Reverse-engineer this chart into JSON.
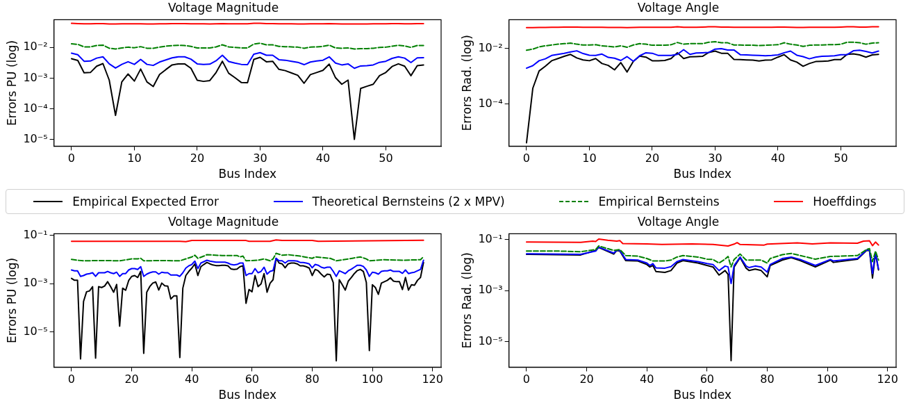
{
  "chart_data": [
    {
      "type": "line",
      "title": "Voltage Magnitude",
      "xlabel": "Bus Index",
      "ylabel": "Errors PU (log)",
      "log": "y",
      "legend": "bottom",
      "xlim": [
        -2.8,
        58.8
      ],
      "xticks": [
        0,
        10,
        20,
        30,
        40,
        50
      ],
      "ylim": [
        6e-06,
        0.08
      ],
      "yticks": [
        {
          "value": 0.01,
          "label": "10⁻²"
        },
        {
          "value": 0.001,
          "label": "10⁻³"
        },
        {
          "value": 0.0001,
          "label": "10⁻⁴"
        },
        {
          "value": 1e-05,
          "label": "10⁻⁵"
        }
      ],
      "x": [
        0,
        1,
        2,
        3,
        4,
        5,
        6,
        7,
        8,
        9,
        10,
        11,
        12,
        13,
        14,
        15,
        16,
        17,
        18,
        19,
        20,
        21,
        22,
        23,
        24,
        25,
        26,
        27,
        28,
        29,
        30,
        31,
        32,
        33,
        34,
        35,
        36,
        37,
        38,
        39,
        40,
        41,
        42,
        43,
        44,
        45,
        46,
        47,
        48,
        49,
        50,
        51,
        52,
        53,
        54,
        55,
        56
      ],
      "series": [
        {
          "name": "Empirical Expected Error",
          "color": "#000000",
          "values": [
            0.0043,
            0.00375,
            0.00149,
            0.00152,
            0.00244,
            0.00297,
            0.00086,
            6.1e-05,
            0.00075,
            0.00136,
            0.0008,
            0.00197,
            0.00075,
            0.00053,
            0.0013,
            0.00189,
            0.00269,
            0.00291,
            0.00291,
            0.00209,
            0.00085,
            0.00078,
            0.00083,
            0.00152,
            0.00354,
            0.00144,
            0.00103,
            0.00072,
            0.00071,
            0.00406,
            0.00475,
            0.0034,
            0.00354,
            0.00193,
            0.00175,
            0.00147,
            0.00123,
            0.00068,
            0.0013,
            0.00152,
            0.00178,
            0.00285,
            0.00103,
            0.00063,
            0.00086,
            1e-05,
            0.00046,
            0.00054,
            0.00063,
            0.0012,
            0.00152,
            0.00239,
            0.00291,
            0.00244,
            0.0012,
            0.00254,
            0.00269
          ]
        },
        {
          "name": "Theoretical Bernsteins  (2 x MPV)",
          "color": "#0000ff",
          "values": [
            0.0065,
            0.00578,
            0.00354,
            0.0036,
            0.00448,
            0.00494,
            0.00291,
            0.00213,
            0.0028,
            0.0034,
            0.0028,
            0.00406,
            0.0028,
            0.00259,
            0.00334,
            0.0039,
            0.00457,
            0.00494,
            0.00494,
            0.00414,
            0.00291,
            0.0028,
            0.00285,
            0.00368,
            0.00556,
            0.00347,
            0.00309,
            0.0028,
            0.00274,
            0.00601,
            0.00676,
            0.00556,
            0.00556,
            0.00398,
            0.00383,
            0.00354,
            0.00327,
            0.00274,
            0.00334,
            0.0036,
            0.00383,
            0.00494,
            0.00309,
            0.00269,
            0.00291,
            0.00209,
            0.00249,
            0.00254,
            0.00269,
            0.00327,
            0.00354,
            0.0044,
            0.00494,
            0.00448,
            0.00321,
            0.00457,
            0.00466
          ]
        },
        {
          "name": "Empirical Bernsteins",
          "color": "#008000",
          "line_style": "dashed",
          "values": [
            0.0131,
            0.0126,
            0.0104,
            0.0104,
            0.0115,
            0.0119,
            0.0094,
            0.0089,
            0.0096,
            0.0102,
            0.0098,
            0.0106,
            0.0094,
            0.0094,
            0.0102,
            0.011,
            0.0115,
            0.0117,
            0.0115,
            0.0108,
            0.0096,
            0.0096,
            0.0096,
            0.0104,
            0.0122,
            0.0104,
            0.01,
            0.0096,
            0.0096,
            0.0129,
            0.0137,
            0.0122,
            0.0122,
            0.0108,
            0.0106,
            0.0104,
            0.0102,
            0.0094,
            0.0102,
            0.0104,
            0.0108,
            0.0119,
            0.0096,
            0.0094,
            0.0096,
            0.0089,
            0.0091,
            0.0091,
            0.0094,
            0.01,
            0.0102,
            0.011,
            0.0117,
            0.0112,
            0.01,
            0.0115,
            0.0115
          ]
        },
        {
          "name": "Hoeffdings",
          "color": "#ff0000",
          "values": [
            0.061,
            0.06,
            0.059,
            0.059,
            0.06,
            0.06,
            0.058,
            0.058,
            0.059,
            0.059,
            0.059,
            0.059,
            0.058,
            0.058,
            0.059,
            0.059,
            0.06,
            0.06,
            0.06,
            0.059,
            0.059,
            0.059,
            0.058,
            0.059,
            0.06,
            0.059,
            0.059,
            0.059,
            0.059,
            0.061,
            0.061,
            0.06,
            0.06,
            0.059,
            0.059,
            0.059,
            0.058,
            0.058,
            0.059,
            0.059,
            0.059,
            0.06,
            0.059,
            0.058,
            0.058,
            0.058,
            0.058,
            0.058,
            0.059,
            0.059,
            0.059,
            0.06,
            0.06,
            0.059,
            0.059,
            0.06,
            0.06
          ]
        }
      ]
    },
    {
      "type": "line",
      "title": "Voltage Angle",
      "xlabel": "Bus Index",
      "ylabel": "Errors Rad. (log)",
      "log": "y",
      "xlim": [
        -2.8,
        58.8
      ],
      "xticks": [
        0,
        10,
        20,
        30,
        40,
        50
      ],
      "ylim": [
        3e-06,
        0.11
      ],
      "yticks": [
        {
          "value": 0.01,
          "label": "10⁻²"
        },
        {
          "value": 0.0001,
          "label": "10⁻⁴"
        }
      ],
      "x": [
        0,
        1,
        2,
        3,
        4,
        5,
        6,
        7,
        8,
        9,
        10,
        11,
        12,
        13,
        14,
        15,
        16,
        17,
        18,
        19,
        20,
        21,
        22,
        23,
        24,
        25,
        26,
        27,
        28,
        29,
        30,
        31,
        32,
        33,
        34,
        35,
        36,
        37,
        38,
        39,
        40,
        41,
        42,
        43,
        44,
        45,
        46,
        47,
        48,
        49,
        50,
        51,
        52,
        53,
        54,
        55,
        56
      ],
      "series": [
        {
          "color": "#000000",
          "values": [
            4e-06,
            0.00037,
            0.00156,
            0.00231,
            0.00365,
            0.00438,
            0.00526,
            0.00618,
            0.00459,
            0.00391,
            0.00365,
            0.00438,
            0.0029,
            0.00247,
            0.00171,
            0.00311,
            0.00143,
            0.00348,
            0.00538,
            0.00492,
            0.00365,
            0.00365,
            0.00373,
            0.00438,
            0.00709,
            0.00438,
            0.00503,
            0.00514,
            0.00526,
            0.00726,
            0.00813,
            0.00678,
            0.00678,
            0.00409,
            0.004,
            0.00391,
            0.00382,
            0.00357,
            0.00382,
            0.00391,
            0.00492,
            0.00604,
            0.00391,
            0.00325,
            0.00231,
            0.0029,
            0.0034,
            0.00348,
            0.00357,
            0.004,
            0.004,
            0.00618,
            0.00647,
            0.0059,
            0.00492,
            0.0059,
            0.00618
          ]
        },
        {
          "color": "#0000ff",
          "values": [
            0.00197,
            0.00242,
            0.00365,
            0.00428,
            0.00564,
            0.00618,
            0.00678,
            0.0076,
            0.00832,
            0.00662,
            0.00577,
            0.00564,
            0.00633,
            0.00481,
            0.00449,
            0.00373,
            0.00514,
            0.00348,
            0.00551,
            0.00709,
            0.00678,
            0.00564,
            0.00564,
            0.00564,
            0.00618,
            0.00912,
            0.00618,
            0.00693,
            0.00709,
            0.00726,
            0.00955,
            0.01,
            0.00892,
            0.00892,
            0.00604,
            0.0059,
            0.00577,
            0.00564,
            0.00551,
            0.00564,
            0.0059,
            0.00709,
            0.00813,
            0.00577,
            0.00514,
            0.00428,
            0.00492,
            0.00526,
            0.00538,
            0.00551,
            0.00604,
            0.00604,
            0.00832,
            0.00871,
            0.00794,
            0.00693,
            0.00813
          ]
        },
        {
          "color": "#008000",
          "line_style": "dashed",
          "values": [
            0.00871,
            0.00955,
            0.0115,
            0.0126,
            0.0135,
            0.0144,
            0.0151,
            0.0158,
            0.0144,
            0.0135,
            0.0135,
            0.0138,
            0.0126,
            0.012,
            0.0115,
            0.0126,
            0.0112,
            0.0135,
            0.0151,
            0.0144,
            0.0132,
            0.0132,
            0.0132,
            0.0138,
            0.0166,
            0.0144,
            0.0151,
            0.0151,
            0.0151,
            0.0169,
            0.0177,
            0.0162,
            0.0162,
            0.0135,
            0.0135,
            0.0132,
            0.0132,
            0.0129,
            0.0132,
            0.0135,
            0.0138,
            0.0162,
            0.0144,
            0.0135,
            0.012,
            0.0132,
            0.0135,
            0.0135,
            0.0138,
            0.0138,
            0.0144,
            0.0169,
            0.0169,
            0.0162,
            0.0144,
            0.0158,
            0.0162
          ]
        },
        {
          "color": "#ff0000",
          "values": [
            0.057,
            0.057,
            0.058,
            0.058,
            0.059,
            0.059,
            0.06,
            0.06,
            0.06,
            0.059,
            0.059,
            0.059,
            0.059,
            0.058,
            0.058,
            0.058,
            0.057,
            0.058,
            0.059,
            0.059,
            0.059,
            0.059,
            0.059,
            0.059,
            0.061,
            0.059,
            0.059,
            0.059,
            0.06,
            0.061,
            0.061,
            0.06,
            0.06,
            0.059,
            0.059,
            0.059,
            0.059,
            0.059,
            0.059,
            0.059,
            0.06,
            0.06,
            0.059,
            0.058,
            0.058,
            0.059,
            0.059,
            0.059,
            0.059,
            0.059,
            0.06,
            0.061,
            0.061,
            0.06,
            0.06,
            0.061,
            0.061
          ]
        }
      ]
    },
    {
      "type": "line",
      "title": "Voltage Magnitude",
      "xlabel": "Bus Index",
      "ylabel": "Errors PU (log)",
      "log": "y",
      "xlim": [
        -5.85,
        122.85
      ],
      "xticks": [
        0,
        20,
        40,
        60,
        80,
        100,
        120
      ],
      "ylim": [
        3.5e-07,
        0.115
      ],
      "yticks": [
        {
          "value": 0.1,
          "label": "10⁻¹"
        },
        {
          "value": 0.001,
          "label": "10⁻³"
        },
        {
          "value": 1e-05,
          "label": "10⁻⁵"
        }
      ],
      "x": [
        0,
        1,
        2,
        3,
        4,
        5,
        6,
        7,
        8,
        9,
        10,
        11,
        12,
        13,
        14,
        15,
        16,
        17,
        18,
        19,
        20,
        21,
        22,
        23,
        24,
        25,
        26,
        27,
        28,
        29,
        30,
        31,
        32,
        33,
        34,
        35,
        36,
        37,
        38,
        39,
        40,
        41,
        42,
        43,
        44,
        45,
        46,
        47,
        48,
        49,
        50,
        51,
        52,
        53,
        54,
        55,
        56,
        57,
        58,
        59,
        60,
        61,
        62,
        63,
        64,
        65,
        66,
        67,
        68,
        69,
        70,
        71,
        72,
        73,
        74,
        75,
        76,
        77,
        78,
        79,
        80,
        81,
        82,
        83,
        84,
        85,
        86,
        87,
        88,
        89,
        90,
        91,
        92,
        93,
        94,
        95,
        96,
        97,
        98,
        99,
        100,
        101,
        102,
        103,
        104,
        105,
        106,
        107,
        108,
        109,
        110,
        111,
        112,
        113,
        114,
        115,
        116,
        117
      ],
      "series": [
        {
          "color": "#000000",
          "values": [
            0.00165,
            0.00137,
            0.00137,
            7.7e-07,
            0.000184,
            0.00046,
            0.0005,
            0.00075,
            8.3e-07,
            0.00075,
            0.00069,
            0.00079,
            0.0012,
            0.00075,
            0.00044,
            0.00092,
            1.74e-05,
            0.00065,
            0.00053,
            0.00134,
            0.00199,
            0.00216,
            0.00179,
            0.0032,
            1.3e-06,
            0.00044,
            0.00075,
            0.00105,
            0.00117,
            0.00054,
            0.00105,
            0.00081,
            0.00079,
            0.00023,
            0.00031,
            0.00031,
            8.8e-07,
            0.00065,
            0.00216,
            0.0032,
            0.0044,
            0.00655,
            0.00216,
            0.00502,
            0.0062,
            0.00748,
            0.00655,
            0.00589,
            0.00558,
            0.00558,
            0.00574,
            0.00574,
            0.00544,
            0.00407,
            0.00386,
            0.00396,
            0.00502,
            0.00544,
            0.000153,
            0.00057,
            0.00046,
            0.00216,
            0.00075,
            0.00097,
            0.00259,
            0.00044,
            0.00103,
            0.00145,
            0.0111,
            0.0071,
            0.00655,
            0.00452,
            0.00655,
            0.0071,
            0.0071,
            0.00655,
            0.00544,
            0.00544,
            0.00502,
            0.0044,
            0.00216,
            0.00386,
            0.00338,
            0.00246,
            0.00189,
            0.00246,
            0.00233,
            0.00111,
            6.4e-07,
            0.00145,
            0.0009,
            0.00054,
            0.00127,
            0.00179,
            0.00259,
            0.00347,
            0.00386,
            0.0032,
            0.00111,
            1.7e-06,
            0.0009,
            0.00069,
            0.00036,
            0.00105,
            0.0012,
            0.00137,
            0.00174,
            0.00127,
            0.0012,
            0.0012,
            0.00057,
            0.00179,
            0.00054,
            0.0009,
            0.00085,
            0.00137,
            0.00179,
            0.00748
          ]
        },
        {
          "color": "#0000ff",
          "values": [
            0.00366,
            0.00338,
            0.00338,
            0.00199,
            0.00216,
            0.00246,
            0.00259,
            0.00281,
            0.00199,
            0.00281,
            0.00281,
            0.00281,
            0.0032,
            0.00281,
            0.00259,
            0.00296,
            0.00199,
            0.00259,
            0.00259,
            0.00366,
            0.00418,
            0.00418,
            0.00386,
            0.00502,
            0.00199,
            0.00246,
            0.00281,
            0.00304,
            0.00304,
            0.00246,
            0.00296,
            0.00281,
            0.00281,
            0.00227,
            0.00227,
            0.00227,
            0.00199,
            0.00281,
            0.0044,
            0.00544,
            0.0062,
            0.00853,
            0.00418,
            0.0071,
            0.00809,
            0.00924,
            0.00853,
            0.00809,
            0.00767,
            0.00767,
            0.00767,
            0.00767,
            0.0071,
            0.0062,
            0.00589,
            0.0062,
            0.0071,
            0.0071,
            0.00216,
            0.00259,
            0.00259,
            0.00418,
            0.00281,
            0.0032,
            0.00477,
            0.00246,
            0.0032,
            0.00347,
            0.0111,
            0.00877,
            0.00877,
            0.0071,
            0.00877,
            0.00877,
            0.00877,
            0.00853,
            0.00748,
            0.00748,
            0.0071,
            0.00655,
            0.00452,
            0.0062,
            0.00574,
            0.00477,
            0.0044,
            0.00477,
            0.00477,
            0.0032,
            0.00199,
            0.00338,
            0.00296,
            0.00259,
            0.00338,
            0.00396,
            0.00477,
            0.00574,
            0.00574,
            0.00516,
            0.00366,
            0.00199,
            0.00296,
            0.00281,
            0.00246,
            0.0032,
            0.00338,
            0.00338,
            0.00366,
            0.0032,
            0.0032,
            0.0032,
            0.00266,
            0.00366,
            0.00259,
            0.00281,
            0.00296,
            0.00338,
            0.00386,
            0.00924
          ]
        },
        {
          "color": "#008000",
          "line_style": "dashed",
          "x": [
            0,
            2,
            4,
            10,
            16,
            20,
            22,
            23,
            24,
            30,
            36,
            38,
            40,
            41,
            42,
            44,
            45,
            50,
            55,
            56,
            57,
            58,
            62,
            64,
            66,
            67,
            68,
            70,
            72,
            76,
            80,
            81,
            86,
            88,
            92,
            96,
            98,
            99,
            104,
            110,
            116,
            117
          ],
          "values": [
            0.01,
            0.00924,
            0.00877,
            0.009,
            0.00877,
            0.0105,
            0.0105,
            0.0111,
            0.00877,
            0.009,
            0.00877,
            0.0105,
            0.0127,
            0.0149,
            0.0111,
            0.0137,
            0.0157,
            0.0145,
            0.0145,
            0.0127,
            0.0137,
            0.00877,
            0.00924,
            0.0105,
            0.00877,
            0.0105,
            0.0179,
            0.0149,
            0.0157,
            0.0137,
            0.0111,
            0.0127,
            0.0111,
            0.00877,
            0.0105,
            0.0127,
            0.0105,
            0.00877,
            0.00975,
            0.00924,
            0.00975,
            0.013
          ]
        },
        {
          "color": "#ff0000",
          "x": [
            0,
            36,
            38,
            40,
            58,
            59,
            66,
            68,
            70,
            80,
            82,
            117
          ],
          "values": [
            0.0559,
            0.0559,
            0.0544,
            0.0605,
            0.0605,
            0.0559,
            0.0559,
            0.0638,
            0.0605,
            0.0605,
            0.0559,
            0.0621
          ]
        }
      ]
    },
    {
      "type": "line",
      "title": "Voltage Angle",
      "xlabel": "Bus Index",
      "ylabel": "Errors Rad. (log)",
      "log": "y",
      "xlim": [
        -5.85,
        122.85
      ],
      "xticks": [
        0,
        20,
        40,
        60,
        80,
        100,
        120
      ],
      "ylim": [
        1e-06,
        0.17
      ],
      "yticks": [
        {
          "value": 0.1,
          "label": "10⁻¹"
        },
        {
          "value": 0.001,
          "label": "10⁻³"
        },
        {
          "value": 1e-05,
          "label": "10⁻⁵"
        }
      ],
      "series": [
        {
          "color": "#000000",
          "x": [
            0,
            18,
            23,
            24,
            29,
            30,
            31,
            33,
            37,
            40,
            41,
            42,
            43,
            46,
            48,
            50,
            52,
            57,
            60,
            62,
            64,
            66,
            67,
            68,
            69,
            71,
            73,
            74,
            76,
            78,
            80,
            81,
            85,
            88,
            91,
            96,
            101,
            102,
            110,
            113,
            114,
            115,
            116,
            117
          ],
          "values": [
            0.0265,
            0.0251,
            0.0377,
            0.0494,
            0.0272,
            0.0377,
            0.0357,
            0.015,
            0.0146,
            0.0106,
            0.0085,
            0.0097,
            0.00566,
            0.00522,
            0.00614,
            0.0121,
            0.015,
            0.0121,
            0.0097,
            0.0085,
            0.00409,
            0.00614,
            0.00432,
            1.8e-06,
            0.0085,
            0.0197,
            0.00762,
            0.00614,
            0.00703,
            0.00614,
            0.00348,
            0.0097,
            0.0158,
            0.0197,
            0.015,
            0.0085,
            0.0158,
            0.0128,
            0.0172,
            0.0377,
            0.0377,
            0.00312,
            0.0288,
            0.00649
          ]
        },
        {
          "color": "#0000ff",
          "x": [
            0,
            18,
            23,
            24,
            29,
            30,
            31,
            33,
            37,
            40,
            41,
            42,
            43,
            46,
            48,
            50,
            52,
            57,
            60,
            62,
            64,
            66,
            67,
            68,
            69,
            71,
            73,
            74,
            76,
            78,
            80,
            81,
            85,
            88,
            91,
            96,
            101,
            102,
            110,
            113,
            114,
            115,
            116,
            117
          ],
          "values": [
            0.028,
            0.0265,
            0.0357,
            0.0508,
            0.0296,
            0.0388,
            0.0377,
            0.0167,
            0.0158,
            0.0121,
            0.0097,
            0.0115,
            0.00784,
            0.00762,
            0.00873,
            0.0138,
            0.0167,
            0.0138,
            0.0115,
            0.0106,
            0.00614,
            0.00922,
            0.0085,
            0.0019,
            0.0097,
            0.0208,
            0.00922,
            0.00805,
            0.00922,
            0.0085,
            0.00536,
            0.0106,
            0.0182,
            0.0208,
            0.0167,
            0.0097,
            0.0167,
            0.0146,
            0.0182,
            0.0388,
            0.0388,
            0.00469,
            0.0312,
            0.00703
          ]
        },
        {
          "color": "#008000",
          "line_style": "dashed",
          "x": [
            0,
            10,
            18,
            23,
            24,
            29,
            31,
            33,
            37,
            40,
            42,
            46,
            48,
            50,
            52,
            57,
            60,
            62,
            64,
            66,
            67,
            68,
            69,
            71,
            73,
            78,
            80,
            81,
            85,
            88,
            91,
            96,
            101,
            110,
            113,
            114,
            115,
            116,
            117
          ],
          "values": [
            0.0357,
            0.0357,
            0.0338,
            0.0409,
            0.0566,
            0.0377,
            0.0409,
            0.0238,
            0.0225,
            0.0182,
            0.0146,
            0.0146,
            0.0158,
            0.0208,
            0.0238,
            0.0208,
            0.0172,
            0.0167,
            0.0121,
            0.0172,
            0.0219,
            0.0085,
            0.0167,
            0.0272,
            0.0158,
            0.0158,
            0.0121,
            0.0182,
            0.0258,
            0.0288,
            0.0238,
            0.0172,
            0.0219,
            0.0238,
            0.0409,
            0.0444,
            0.0138,
            0.0357,
            0.0158
          ]
        },
        {
          "color": "#ff0000",
          "x": [
            0,
            18,
            22,
            23,
            24,
            27,
            30,
            31,
            32,
            40,
            45,
            55,
            62,
            67,
            69,
            70,
            71,
            79,
            80,
            90,
            95,
            101,
            110,
            112,
            114,
            115,
            116,
            117
          ],
          "values": [
            0.0805,
            0.0784,
            0.0873,
            0.085,
            0.106,
            0.0947,
            0.0873,
            0.0922,
            0.0703,
            0.0685,
            0.0648,
            0.0685,
            0.0648,
            0.0566,
            0.0667,
            0.0763,
            0.0648,
            0.0614,
            0.0667,
            0.0743,
            0.0685,
            0.0743,
            0.0723,
            0.0873,
            0.0897,
            0.0581,
            0.0805,
            0.0614
          ]
        }
      ]
    }
  ]
}
